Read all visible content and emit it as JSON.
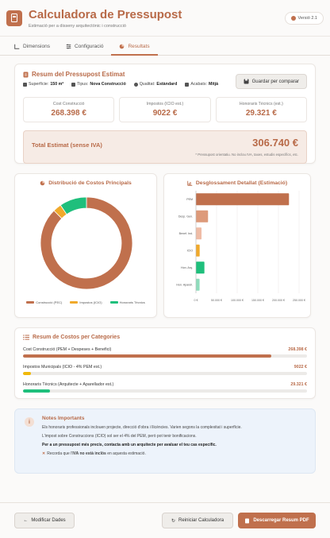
{
  "header": {
    "title": "Calculadora de Pressupost",
    "subtitle": "Estimació per a disseny arquitectònic i construcció",
    "version": "Versió 2.1"
  },
  "tabs": [
    {
      "label": "Dimensions",
      "icon": "ruler-icon"
    },
    {
      "label": "Configuració",
      "icon": "sliders-icon"
    },
    {
      "label": "Resultats",
      "icon": "pie-chart-icon",
      "active": true
    }
  ],
  "summary": {
    "title": "Resum del Pressupost Estimat",
    "save_label": "Guardar per comparar",
    "meta": {
      "surface_label": "Superfície:",
      "surface_value": "150 m²",
      "type_label": "Tipus:",
      "type_value": "Nova Construcció",
      "quality_label": "Qualitat:",
      "quality_value": "Estàndard",
      "finish_label": "Acabats:",
      "finish_value": "Mitjà"
    },
    "boxes": [
      {
        "label": "Cost Construcció",
        "value": "268.398 €"
      },
      {
        "label": "Impostos (ICIO est.)",
        "value": "9022 €"
      },
      {
        "label": "Honoraris Tècnics (est.)",
        "value": "29.321 €"
      }
    ],
    "total_label": "Total Estimat (sense IVA)",
    "total_value": "306.740 €",
    "total_note": "* Pressupost orientatiu. No inclou IVA, taxes, estudis específics, etc."
  },
  "chart_data": [
    {
      "type": "pie",
      "title": "Distribució de Costos Principals",
      "labels": [
        "Construcció (PEC)",
        "Impostos (ICIO)",
        "Honoraris Tècnics"
      ],
      "values": [
        268398,
        9022,
        29321
      ],
      "colors": [
        "#c0704d",
        "#f0a92b",
        "#1fbf7c"
      ],
      "legend": "bottom"
    },
    {
      "type": "bar",
      "orientation": "horizontal",
      "title": "Desglossament Detallat (Estimació)",
      "categories": [
        "PEM",
        "Desp. Gen.",
        "Benef. Ind.",
        "ICIO",
        "Hon. Arq.",
        "Hon. Aparell."
      ],
      "values": [
        225545,
        29321,
        13533,
        9022,
        20500,
        8800
      ],
      "colors": [
        "#c0704d",
        "#dd9a7a",
        "#efbca6",
        "#f0a92b",
        "#1fbf7c",
        "#8fdcbc"
      ],
      "xticks": [
        "0 €",
        "50.000 €",
        "100.000 €",
        "150.000 €",
        "200.000 €",
        "250.000 €"
      ],
      "xlim": [
        0,
        250000
      ],
      "grid": true
    }
  ],
  "categories": {
    "title": "Resum de Costos per Categories",
    "items": [
      {
        "label": "Cost Construcció (PEM + Despeses + Benefici)",
        "value": "268.398 €",
        "fraction": 0.875,
        "color": "#c0704d"
      },
      {
        "label": "Impostos Municipals (ICIO - 4% PEM est.)",
        "value": "9022 €",
        "fraction": 0.029,
        "color": "#f0b90b"
      },
      {
        "label": "Honoraris Tècnics (Arquitecte + Aparellador est.)",
        "value": "29.321 €",
        "fraction": 0.096,
        "color": "#1fbf7c"
      }
    ]
  },
  "notes": {
    "title": "Notes Importants",
    "p1": "Els honoraris professionals inclouen projecte, direcció d'obra i llicències. Varien segons la complexitat i superfície.",
    "p2": "L'impost sobre Construccions (ICIO) sol ser el 4% del PEM, però pot tenir bonificacions.",
    "p3": "Per a un pressupost més precís, contacta amb un arquitecte per avaluar el teu cas específic.",
    "p4_pre": "Recorda que l'",
    "p4_bold": "IVA no està inclòs",
    "p4_post": " en aquesta estimació."
  },
  "footer": {
    "back_label": "Modificar Dades",
    "reset_label": "Reiniciar Calculadora",
    "download_label": "Descarregar Resum PDF"
  }
}
